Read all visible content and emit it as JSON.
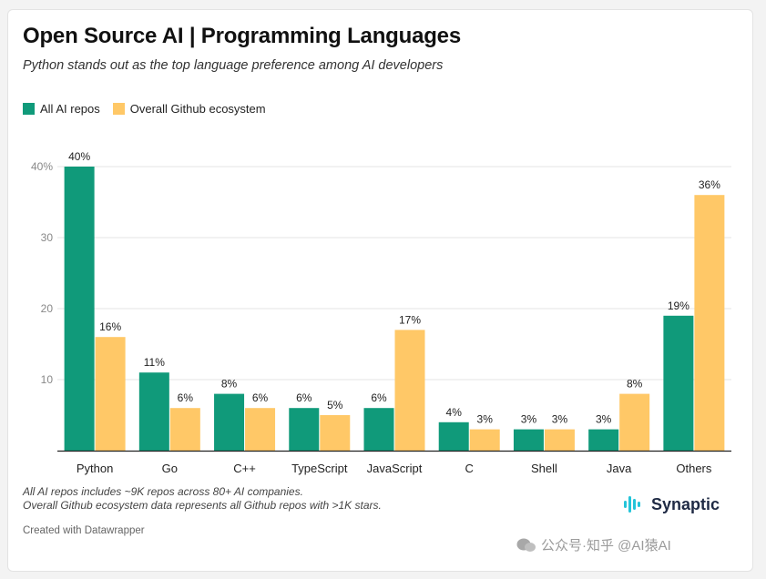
{
  "header": {
    "title": "Open Source AI | Programming Languages",
    "subtitle": "Python stands out as the top language preference among AI developers"
  },
  "legend": [
    {
      "label": "All AI repos",
      "color": "#109a7a"
    },
    {
      "label": "Overall Github ecosystem",
      "color": "#ffc867"
    }
  ],
  "chart_data": {
    "type": "bar",
    "categories": [
      "Python",
      "Go",
      "C++",
      "TypeScript",
      "JavaScript",
      "C",
      "Shell",
      "Java",
      "Others"
    ],
    "series": [
      {
        "name": "All AI repos",
        "color": "#109a7a",
        "values": [
          40,
          11,
          8,
          6,
          6,
          4,
          3,
          3,
          19
        ]
      },
      {
        "name": "Overall Github ecosystem",
        "color": "#ffc867",
        "values": [
          16,
          6,
          6,
          5,
          17,
          3,
          3,
          8,
          36
        ]
      }
    ],
    "value_suffix": "%",
    "yticks": [
      10,
      20,
      30,
      40
    ],
    "ytick_labels": [
      "10",
      "20",
      "30",
      "40%"
    ],
    "ylim": [
      0,
      40
    ],
    "grid": true,
    "legend_position": "top-left",
    "title": "Open Source AI | Programming Languages",
    "xlabel": "",
    "ylabel": ""
  },
  "footer": {
    "note_line1": "All AI repos includes ~9K repos across 80+ AI companies.",
    "note_line2": "Overall Github ecosystem data represents all Github repos with >1K stars.",
    "credit": "Created with Datawrapper",
    "brand": "Synaptic",
    "watermark": "公众号·知乎 @AI猿AI"
  }
}
